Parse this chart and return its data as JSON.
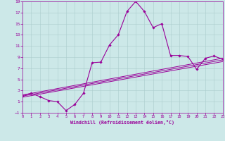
{
  "xlabel": "Windchill (Refroidissement éolien,°C)",
  "bg_color": "#cce8e8",
  "line_color": "#990099",
  "grid_color": "#aacccc",
  "xmin": 0,
  "xmax": 23,
  "ymin": -1,
  "ymax": 19,
  "xticks": [
    0,
    1,
    2,
    3,
    4,
    5,
    6,
    7,
    8,
    9,
    10,
    11,
    12,
    13,
    14,
    15,
    16,
    17,
    18,
    19,
    20,
    21,
    22,
    23
  ],
  "yticks": [
    -1,
    1,
    3,
    5,
    7,
    9,
    11,
    13,
    15,
    17,
    19
  ],
  "line1_x": [
    0,
    1,
    2,
    3,
    4,
    5,
    6,
    7,
    8,
    9,
    10,
    11,
    12,
    13,
    14,
    15,
    16,
    17,
    18,
    19,
    20,
    21,
    22,
    23
  ],
  "line1_y": [
    2.1,
    2.5,
    1.9,
    1.2,
    1.0,
    -0.6,
    0.5,
    2.5,
    8.0,
    8.1,
    11.2,
    13.0,
    17.2,
    19.0,
    17.2,
    14.3,
    15.0,
    9.3,
    9.3,
    9.1,
    6.8,
    8.8,
    9.2,
    8.6
  ],
  "line2_x": [
    0,
    23
  ],
  "line2_y": [
    2.0,
    8.5
  ],
  "line3_x": [
    0,
    23
  ],
  "line3_y": [
    2.2,
    8.8
  ],
  "line4_x": [
    0,
    23
  ],
  "line4_y": [
    1.8,
    8.2
  ]
}
